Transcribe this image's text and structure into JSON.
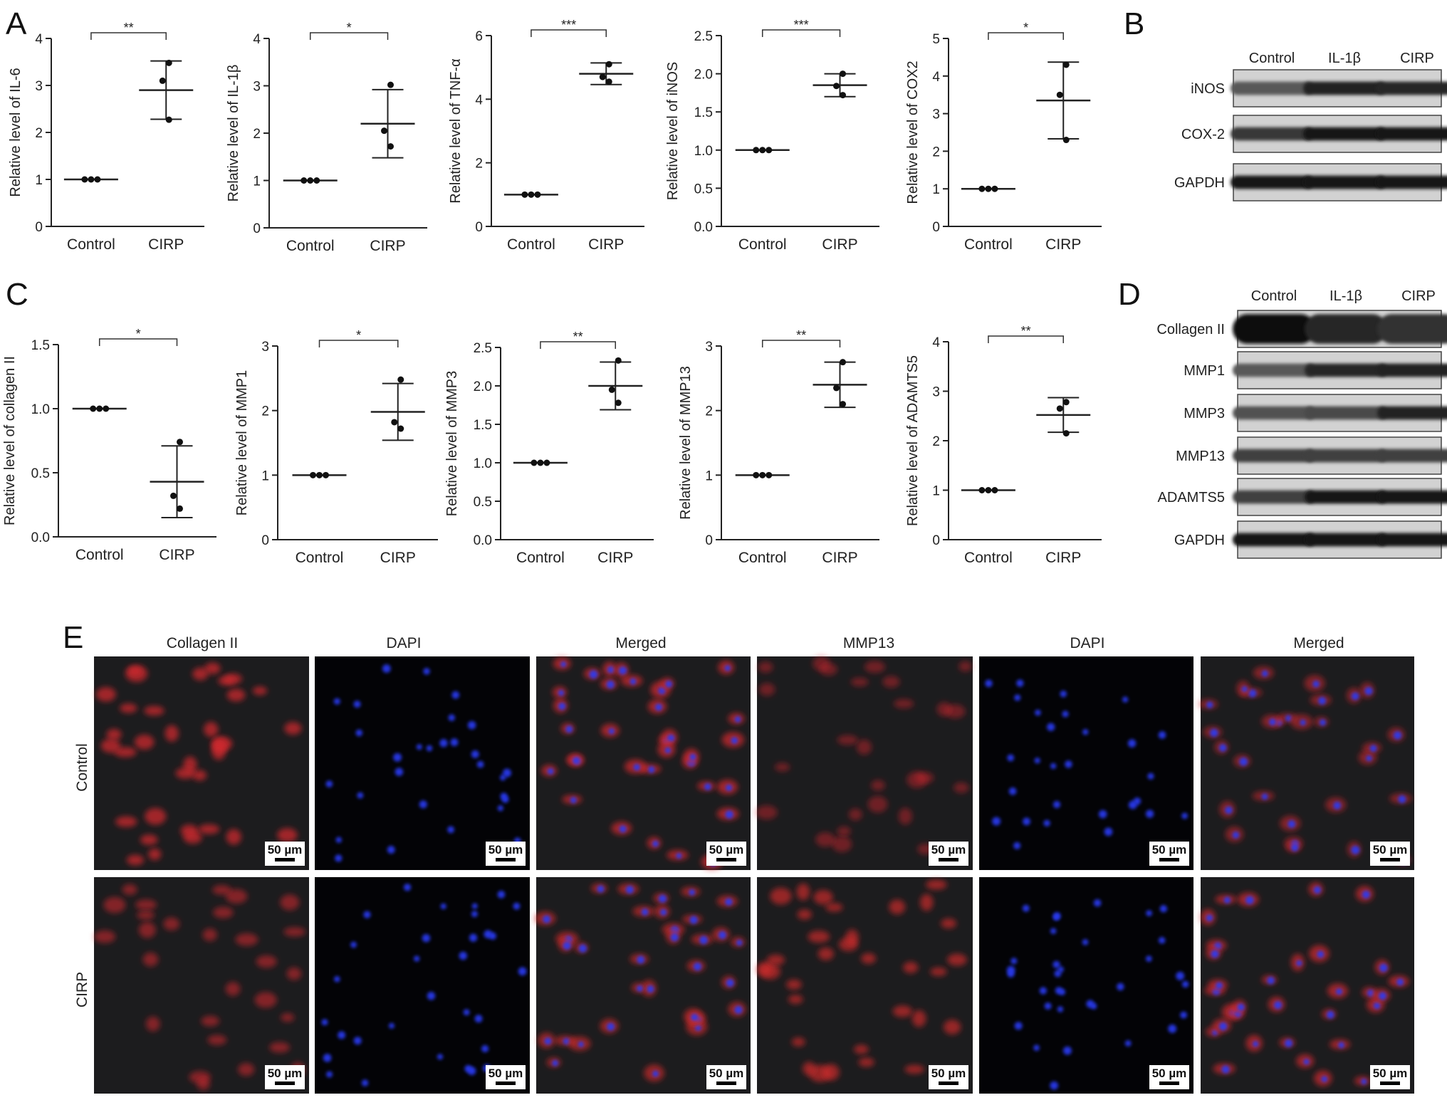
{
  "panel_labels": [
    "A",
    "B",
    "C",
    "D",
    "E"
  ],
  "chart_data": [
    {
      "type": "scatter",
      "panel": "A",
      "ylabel": "Relative level of IL-6",
      "categories": [
        "Control",
        "CIRP"
      ],
      "ylim": [
        0,
        4
      ],
      "yticks": [
        "0",
        "1",
        "2",
        "3",
        "4"
      ],
      "means": [
        1.0,
        2.9
      ],
      "sd": [
        0,
        0.62
      ],
      "points": [
        [
          1,
          1,
          1
        ],
        [
          2.27,
          3.1,
          3.48
        ]
      ],
      "significance": "**"
    },
    {
      "type": "scatter",
      "panel": "A",
      "ylabel": "Relative level of IL-1β",
      "categories": [
        "Control",
        "CIRP"
      ],
      "ylim": [
        0,
        4
      ],
      "yticks": [
        "0",
        "1",
        "2",
        "3",
        "4"
      ],
      "means": [
        1.0,
        2.2
      ],
      "sd": [
        0,
        0.72
      ],
      "points": [
        [
          1,
          1,
          1
        ],
        [
          1.72,
          2.05,
          3.02
        ]
      ],
      "significance": "*"
    },
    {
      "type": "scatter",
      "panel": "A",
      "ylabel": "Relative level of TNF-α",
      "categories": [
        "Control",
        "CIRP"
      ],
      "ylim": [
        0,
        6
      ],
      "yticks": [
        "0",
        "2",
        "4",
        "6"
      ],
      "means": [
        1.0,
        4.8
      ],
      "sd": [
        0,
        0.34
      ],
      "points": [
        [
          1,
          1,
          1
        ],
        [
          4.55,
          4.7,
          5.1
        ]
      ],
      "significance": "***"
    },
    {
      "type": "scatter",
      "panel": "A",
      "ylabel": "Relative level of iNOS",
      "categories": [
        "Control",
        "CIRP"
      ],
      "ylim": [
        0,
        2.5
      ],
      "yticks": [
        "0.0",
        "0.5",
        "1.0",
        "1.5",
        "2.0",
        "2.5"
      ],
      "means": [
        1.0,
        1.85
      ],
      "sd": [
        0,
        0.15
      ],
      "points": [
        [
          1,
          1,
          1
        ],
        [
          1.72,
          1.84,
          2.0
        ]
      ],
      "significance": "***"
    },
    {
      "type": "scatter",
      "panel": "A",
      "ylabel": "Relative level of COX2",
      "categories": [
        "Control",
        "CIRP"
      ],
      "ylim": [
        0,
        5
      ],
      "yticks": [
        "0",
        "1",
        "2",
        "3",
        "4",
        "5"
      ],
      "means": [
        1.0,
        3.35
      ],
      "sd": [
        0,
        1.02
      ],
      "points": [
        [
          1,
          1,
          1
        ],
        [
          2.3,
          3.5,
          4.3
        ]
      ],
      "significance": "*"
    },
    {
      "type": "scatter",
      "panel": "C",
      "ylabel": "Relative level of collagen II",
      "categories": [
        "Control",
        "CIRP"
      ],
      "ylim": [
        0,
        1.5
      ],
      "yticks": [
        "0.0",
        "0.5",
        "1.0",
        "1.5"
      ],
      "means": [
        1.0,
        0.43
      ],
      "sd": [
        0,
        0.28
      ],
      "points": [
        [
          1,
          1,
          1
        ],
        [
          0.22,
          0.32,
          0.74
        ]
      ],
      "significance": "*"
    },
    {
      "type": "scatter",
      "panel": "C",
      "ylabel": "Relative level of MMP1",
      "categories": [
        "Control",
        "CIRP"
      ],
      "ylim": [
        0,
        3
      ],
      "yticks": [
        "0",
        "1",
        "2",
        "3"
      ],
      "means": [
        1.0,
        1.98
      ],
      "sd": [
        0,
        0.44
      ],
      "points": [
        [
          1,
          1,
          1
        ],
        [
          1.72,
          1.82,
          2.48
        ]
      ],
      "significance": "*"
    },
    {
      "type": "scatter",
      "panel": "C",
      "ylabel": "Relative level of MMP3",
      "categories": [
        "Control",
        "CIRP"
      ],
      "ylim": [
        0,
        2.5
      ],
      "yticks": [
        "0.0",
        "0.5",
        "1.0",
        "1.5",
        "2.0",
        "2.5"
      ],
      "means": [
        1.0,
        2.0
      ],
      "sd": [
        0,
        0.31
      ],
      "points": [
        [
          1,
          1,
          1
        ],
        [
          1.78,
          1.95,
          2.33
        ]
      ],
      "significance": "**"
    },
    {
      "type": "scatter",
      "panel": "C",
      "ylabel": "Relative level of MMP13",
      "categories": [
        "Control",
        "CIRP"
      ],
      "ylim": [
        0,
        3
      ],
      "yticks": [
        "0",
        "1",
        "2",
        "3"
      ],
      "means": [
        1.0,
        2.4
      ],
      "sd": [
        0,
        0.35
      ],
      "points": [
        [
          1,
          1,
          1
        ],
        [
          2.1,
          2.35,
          2.75
        ]
      ],
      "significance": "**"
    },
    {
      "type": "scatter",
      "panel": "C",
      "ylabel": "Relative level of ADAMTS5",
      "categories": [
        "Control",
        "CIRP"
      ],
      "ylim": [
        0,
        4
      ],
      "yticks": [
        "0",
        "1",
        "2",
        "3",
        "4"
      ],
      "means": [
        1.0,
        2.52
      ],
      "sd": [
        0,
        0.35
      ],
      "points": [
        [
          1,
          1,
          1
        ],
        [
          2.15,
          2.65,
          2.78
        ]
      ],
      "significance": "**"
    }
  ],
  "blot_B": {
    "columns": [
      "Control",
      "IL-1β",
      "CIRP"
    ],
    "rows": [
      {
        "label": "iNOS",
        "intensity": [
          0.55,
          0.9,
          0.85
        ]
      },
      {
        "label": "COX-2",
        "intensity": [
          0.75,
          0.95,
          0.95
        ]
      },
      {
        "label": "GAPDH",
        "intensity": [
          0.95,
          0.95,
          0.95
        ]
      }
    ]
  },
  "blot_D": {
    "columns": [
      "Control",
      "IL-1β",
      "CIRP"
    ],
    "rows": [
      {
        "label": "Collagen II",
        "intensity": [
          1.0,
          0.85,
          0.8
        ]
      },
      {
        "label": "MMP1",
        "intensity": [
          0.55,
          0.85,
          0.9
        ]
      },
      {
        "label": "MMP3",
        "intensity": [
          0.6,
          0.65,
          0.9
        ]
      },
      {
        "label": "MMP13",
        "intensity": [
          0.7,
          0.7,
          0.7
        ]
      },
      {
        "label": "ADAMTS5",
        "intensity": [
          0.7,
          0.95,
          0.95
        ]
      },
      {
        "label": "GAPDH",
        "intensity": [
          0.95,
          0.95,
          0.95
        ]
      }
    ]
  },
  "micrographs": {
    "columns": [
      "Collagen II",
      "DAPI",
      "Merged",
      "MMP13",
      "DAPI",
      "Merged"
    ],
    "rows": [
      "Control",
      "CIRP"
    ],
    "scale_bar": "50 µm"
  }
}
